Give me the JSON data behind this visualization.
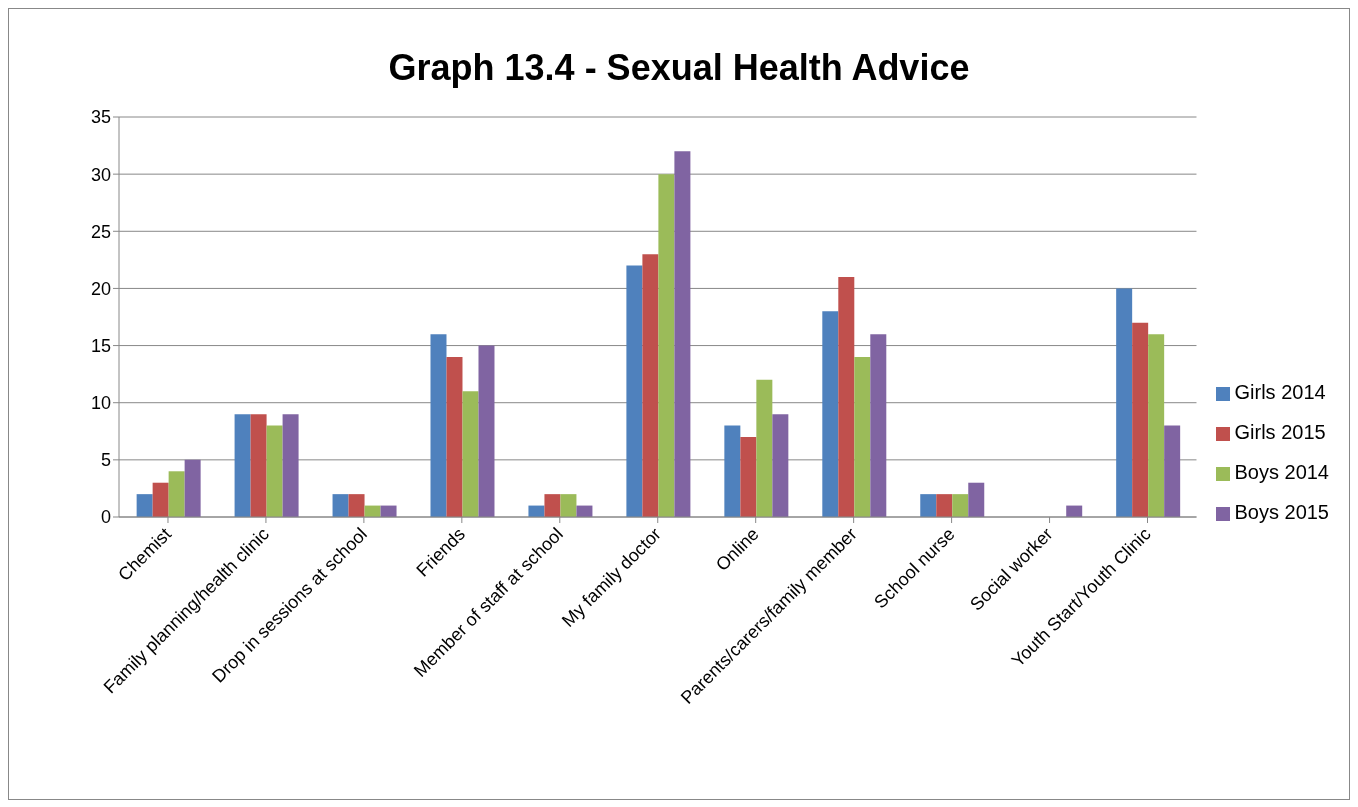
{
  "chart_data": {
    "type": "bar",
    "title": "Graph 13.4 - Sexual Health Advice",
    "categories": [
      "Chemist",
      "Family planning/health clinic",
      "Drop in sessions at school",
      "Friends",
      "Member of staff at school",
      "My family doctor",
      "Online",
      "Parents/carers/family member",
      "School nurse",
      "Social worker",
      "Youth Start/Youth Clinic"
    ],
    "series": [
      {
        "name": "Girls 2014",
        "color": "#4f81bd",
        "values": [
          2,
          9,
          2,
          16,
          1,
          22,
          8,
          18,
          2,
          0,
          20
        ]
      },
      {
        "name": "Girls 2015",
        "color": "#c0504d",
        "values": [
          3,
          9,
          2,
          14,
          2,
          23,
          7,
          21,
          2,
          0,
          17
        ]
      },
      {
        "name": "Boys 2014",
        "color": "#9bbb59",
        "values": [
          4,
          8,
          1,
          11,
          2,
          30,
          12,
          14,
          2,
          0,
          16
        ]
      },
      {
        "name": "Boys 2015",
        "color": "#8064a2",
        "values": [
          5,
          9,
          1,
          15,
          1,
          32,
          9,
          16,
          3,
          1,
          8
        ]
      }
    ],
    "ylim": [
      0,
      35
    ],
    "yticks": [
      0,
      5,
      10,
      15,
      20,
      25,
      30,
      35
    ],
    "grid": "y",
    "legend": "right"
  }
}
